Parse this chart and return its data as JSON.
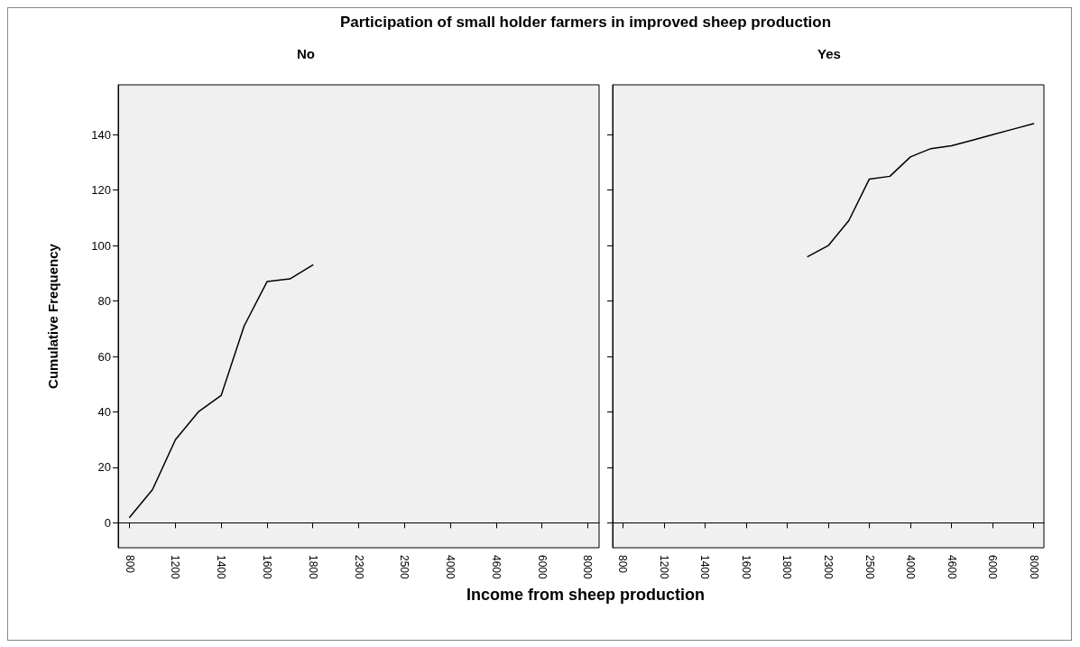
{
  "chart_data": [
    {
      "type": "line",
      "title": "Participation of  small holder farmers in improved sheep production",
      "subtitle": "No",
      "xlabel": "Income from sheep production",
      "ylabel": "Cumulative Frequency",
      "categories": [
        "800",
        null,
        "1200",
        null,
        "1400",
        null,
        "1600",
        null,
        "1800",
        null,
        "2300",
        null,
        "2500",
        null,
        "4000",
        null,
        "4600",
        null,
        "6000",
        null,
        "8000"
      ],
      "series": [
        {
          "color": "#000000",
          "values": [
            2,
            12,
            30,
            40,
            46,
            71,
            87,
            88,
            93,
            null,
            null,
            null,
            null,
            null,
            null,
            null,
            null,
            null,
            null,
            null,
            null
          ]
        }
      ],
      "ylim": [
        -9,
        158
      ],
      "yticks": [
        0,
        20,
        40,
        60,
        80,
        100,
        120,
        140
      ],
      "marker": "none",
      "line_style": "solid"
    },
    {
      "type": "line",
      "subtitle": "Yes",
      "categories": [
        "800",
        null,
        "1200",
        null,
        "1400",
        null,
        "1600",
        null,
        "1800",
        null,
        "2300",
        null,
        "2500",
        null,
        "4000",
        null,
        "4600",
        null,
        "6000",
        null,
        "8000"
      ],
      "series": [
        {
          "color": "#000000",
          "values": [
            null,
            null,
            null,
            null,
            null,
            null,
            null,
            null,
            null,
            96,
            100,
            109,
            124,
            125,
            132,
            135,
            136,
            138,
            140,
            142,
            144
          ]
        }
      ],
      "ylim": [
        -9,
        158
      ],
      "yticks": [
        0,
        20,
        40,
        60,
        80,
        100,
        120,
        140
      ],
      "tick_labels": "x",
      "marker": "none",
      "line_style": "solid"
    }
  ]
}
